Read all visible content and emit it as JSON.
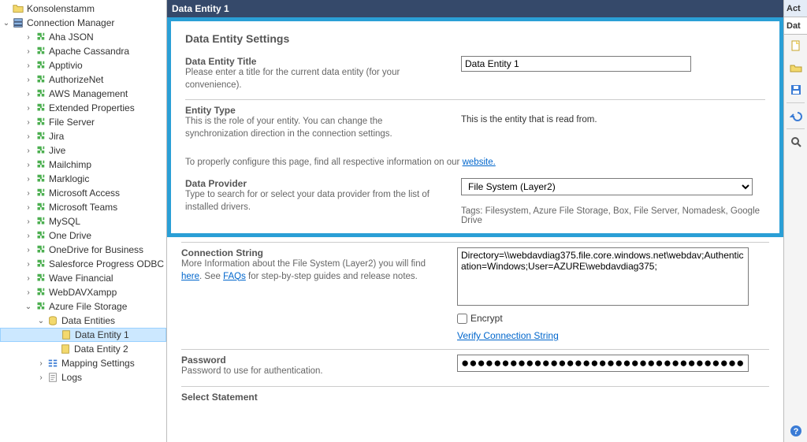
{
  "tree": {
    "root": "Konsolenstamm",
    "conn_mgr": "Connection Manager",
    "items": [
      "Aha JSON",
      "Apache Cassandra",
      "Apptivio",
      "AuthorizeNet",
      "AWS Management",
      "Extended Properties",
      "File Server",
      "Jira",
      "Jive",
      "Mailchimp",
      "Marklogic",
      "Microsoft Access",
      "Microsoft Teams",
      "MySQL",
      "One Drive",
      "OneDrive for Business",
      "Salesforce Progress ODBC",
      "Wave Financial",
      "WebDAVXampp",
      "Azure File Storage"
    ],
    "azure": {
      "data_entities": "Data Entities",
      "e1": "Data Entity 1",
      "e2": "Data Entity 2",
      "mapping": "Mapping Settings",
      "logs": "Logs"
    }
  },
  "header": {
    "title": "Data Entity 1"
  },
  "settings": {
    "heading": "Data Entity Settings",
    "title_label": "Data Entity Title",
    "title_help": "Please enter a title for the current data entity (for your convenience).",
    "title_value": "Data Entity 1",
    "type_label": "Entity Type",
    "type_help": "This is the role of your entity. You can change the synchronization direction in the connection settings.",
    "type_value": "This is the entity that is read from.",
    "config_note_pre": "To properly configure this page, find all respective information on our ",
    "config_note_link": "website.",
    "provider_label": "Data Provider",
    "provider_help": "Type to search for or select your data provider from the list of installed drivers.",
    "provider_value": "File System (Layer2)",
    "provider_tags": "Tags: Filesystem, Azure File Storage, Box, File Server, Nomadesk, Google Drive"
  },
  "conn": {
    "label": "Connection String",
    "help_pre": "More Information about the File System (Layer2) you will find ",
    "help_here": "here",
    "help_mid": ". See ",
    "help_faqs": "FAQs",
    "help_post": " for step-by-step guides and release notes.",
    "value": "Directory=\\\\webdavdiag375.file.core.windows.net\\webdav;Authentication=Windows;User=AZURE\\webdavdiag375;",
    "encrypt": "Encrypt",
    "verify": "Verify Connection String"
  },
  "pwd": {
    "label": "Password",
    "help": "Password to use for authentication.",
    "value": "●●●●●●●●●●●●●●●●●●●●●●●●●●●●●●●●●●●●●●●●●●●●●●●●●●●●●●●●●●●●●●●●●●●●●●●●●●●●●●●●●●●●●●●●"
  },
  "sel": {
    "label": "Select Statement"
  },
  "rbar": {
    "tab1": "Act",
    "tab2": "Dat"
  }
}
